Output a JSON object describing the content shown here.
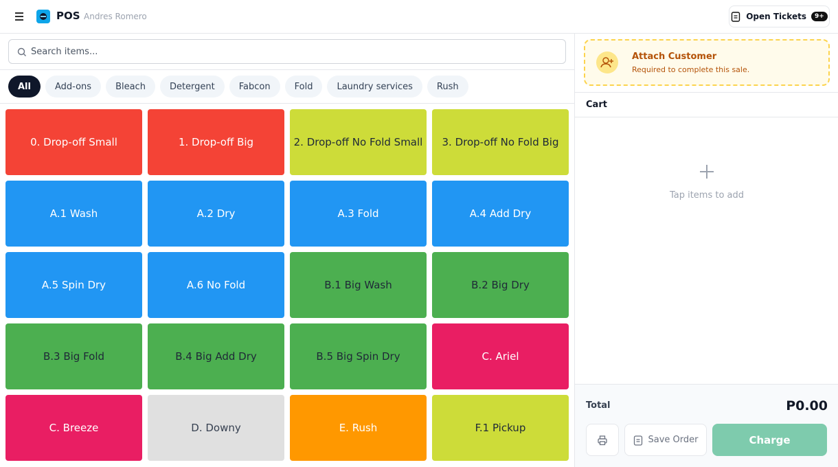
{
  "header": {
    "app_name": "POS",
    "user": "Andres Romero",
    "open_tickets": "Open Tickets",
    "badge": "9+"
  },
  "search": {
    "placeholder": "Search items..."
  },
  "categories": [
    {
      "label": "All",
      "active": true
    },
    {
      "label": "Add-ons",
      "active": false
    },
    {
      "label": "Bleach",
      "active": false
    },
    {
      "label": "Detergent",
      "active": false
    },
    {
      "label": "Fabcon",
      "active": false
    },
    {
      "label": "Fold",
      "active": false
    },
    {
      "label": "Laundry services",
      "active": false
    },
    {
      "label": "Rush",
      "active": false
    }
  ],
  "items": [
    {
      "name": "0. Drop-off Small",
      "color": "#f44336",
      "text_color": "#ffffff"
    },
    {
      "name": "1. Drop-off Big",
      "color": "#f44336",
      "text_color": "#ffffff"
    },
    {
      "name": "2. Drop-off No Fold Small",
      "color": "#cddc39",
      "text_color": "#1f2937"
    },
    {
      "name": "3. Drop-off No Fold Big",
      "color": "#cddc39",
      "text_color": "#1f2937"
    },
    {
      "name": "A.1 Wash",
      "color": "#2196f3",
      "text_color": "#ffffff"
    },
    {
      "name": "A.2 Dry",
      "color": "#2196f3",
      "text_color": "#ffffff"
    },
    {
      "name": "A.3 Fold",
      "color": "#2196f3",
      "text_color": "#ffffff"
    },
    {
      "name": "A.4 Add Dry",
      "color": "#2196f3",
      "text_color": "#ffffff"
    },
    {
      "name": "A.5 Spin Dry",
      "color": "#2196f3",
      "text_color": "#ffffff"
    },
    {
      "name": "A.6 No Fold",
      "color": "#2196f3",
      "text_color": "#ffffff"
    },
    {
      "name": "B.1 Big Wash",
      "color": "#4caf50",
      "text_color": "#1f2937"
    },
    {
      "name": "B.2 Big Dry",
      "color": "#4caf50",
      "text_color": "#1f2937"
    },
    {
      "name": "B.3 Big Fold",
      "color": "#4caf50",
      "text_color": "#1f2937"
    },
    {
      "name": "B.4 Big Add Dry",
      "color": "#4caf50",
      "text_color": "#1f2937"
    },
    {
      "name": "B.5 Big Spin Dry",
      "color": "#4caf50",
      "text_color": "#1f2937"
    },
    {
      "name": "C. Ariel",
      "color": "#e91e63",
      "text_color": "#ffffff"
    },
    {
      "name": "C. Breeze",
      "color": "#e91e63",
      "text_color": "#ffffff"
    },
    {
      "name": "D. Downy",
      "color": "#e0e0e0",
      "text_color": "#374151"
    },
    {
      "name": "E. Rush",
      "color": "#ff9800",
      "text_color": "#ffffff"
    },
    {
      "name": "F.1 Pickup",
      "color": "#cddc39",
      "text_color": "#1f2937"
    }
  ],
  "customer": {
    "title": "Attach Customer",
    "subtitle": "Required to complete this sale."
  },
  "cart": {
    "title": "Cart",
    "empty": "Tap items to add"
  },
  "footer": {
    "total_label": "Total",
    "total": "P0.00",
    "save": "Save Order",
    "charge": "Charge"
  }
}
